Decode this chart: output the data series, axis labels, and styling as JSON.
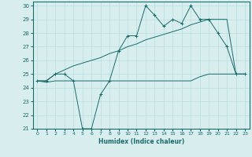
{
  "xlabel": "Humidex (Indice chaleur)",
  "x": [
    0,
    1,
    2,
    3,
    4,
    5,
    6,
    7,
    8,
    9,
    10,
    11,
    12,
    13,
    14,
    15,
    16,
    17,
    18,
    19,
    20,
    21,
    22,
    23
  ],
  "line1": [
    24.5,
    24.5,
    25.0,
    25.0,
    24.5,
    21.0,
    21.0,
    23.5,
    24.5,
    26.7,
    27.8,
    27.8,
    30.0,
    29.3,
    28.5,
    29.0,
    28.7,
    30.0,
    29.0,
    29.0,
    28.0,
    27.0,
    25.0,
    25.0
  ],
  "line2": [
    24.5,
    24.4,
    24.5,
    24.5,
    24.5,
    24.5,
    24.5,
    24.5,
    24.5,
    24.5,
    24.5,
    24.5,
    24.5,
    24.5,
    24.5,
    24.5,
    24.5,
    24.5,
    24.8,
    25.0,
    25.0,
    25.0,
    25.0,
    25.0
  ],
  "line3": [
    24.5,
    24.5,
    25.0,
    25.3,
    25.6,
    25.8,
    26.0,
    26.2,
    26.5,
    26.7,
    27.0,
    27.2,
    27.5,
    27.7,
    27.9,
    28.1,
    28.3,
    28.6,
    28.8,
    29.0,
    29.0,
    29.0,
    25.0,
    25.0
  ],
  "line_color": "#1a6b6b",
  "bg_color": "#d8eeee",
  "grid_color": "#b8dede",
  "ylim": [
    21,
    30
  ],
  "yticks": [
    21,
    22,
    23,
    24,
    25,
    26,
    27,
    28,
    29,
    30
  ],
  "xlim_min": -0.5,
  "xlim_max": 23.5
}
